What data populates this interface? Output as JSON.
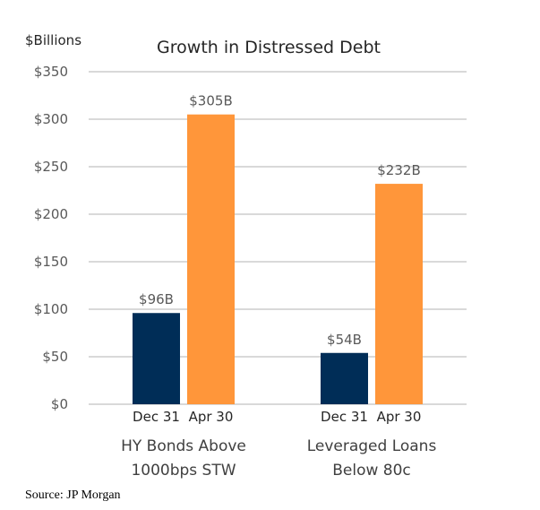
{
  "chart_data": {
    "type": "bar",
    "title": "Growth in Distressed Debt",
    "ylabel": "$Billions",
    "xlabel": "",
    "ylim": [
      0,
      350
    ],
    "yticks": [
      0,
      50,
      100,
      150,
      200,
      250,
      300,
      350
    ],
    "ytick_labels": [
      "$0",
      "$50",
      "$100",
      "$150",
      "$200",
      "$250",
      "$300",
      "$350"
    ],
    "grid": true,
    "legend": "none",
    "groups": [
      {
        "name_lines": [
          "HY Bonds Above",
          "1000bps STW"
        ],
        "bars": [
          {
            "category": "Dec 31",
            "value": 96,
            "label": "$96B",
            "color": "#002D57"
          },
          {
            "category": "Apr 30",
            "value": 305,
            "label": "$305B",
            "color": "#FF963A"
          }
        ]
      },
      {
        "name_lines": [
          "Leveraged Loans",
          "Below 80c"
        ],
        "bars": [
          {
            "category": "Dec 31",
            "value": 54,
            "label": "$54B",
            "color": "#002D57"
          },
          {
            "category": "Apr 30",
            "value": 232,
            "label": "$232B",
            "color": "#FF963A"
          }
        ]
      }
    ],
    "source": "Source: JP Morgan"
  }
}
